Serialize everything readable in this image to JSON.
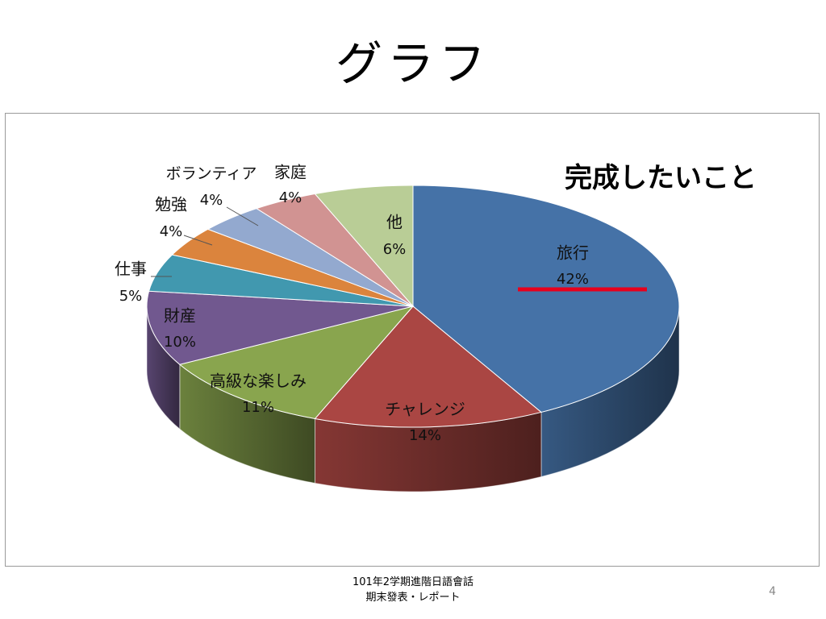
{
  "slide": {
    "title": "グラフ",
    "footer_line1": "101年2学期進階日語會話",
    "footer_line2": "期末發表・レポート",
    "page_number": "4"
  },
  "chart_data": {
    "type": "pie",
    "title": "完成したいこと",
    "legend": "none",
    "labels_on_chart": true,
    "categories": [
      "旅行",
      "チャレンジ",
      "高級な楽しみ",
      "財産",
      "仕事",
      "勉強",
      "ボランティア",
      "家庭",
      "他"
    ],
    "values": [
      42,
      14,
      11,
      10,
      5,
      4,
      4,
      4,
      6
    ],
    "value_labels": [
      "42%",
      "14%",
      "11%",
      "10%",
      "5%",
      "4%",
      "4%",
      "4%",
      "6%"
    ],
    "colors": [
      "#4572a7",
      "#aa4643",
      "#89a54e",
      "#71588f",
      "#4198af",
      "#db843d",
      "#93a9cf",
      "#d19392",
      "#b9cd96"
    ],
    "annotation": {
      "type": "underline",
      "target": "旅行",
      "color": "#e8001c"
    }
  }
}
